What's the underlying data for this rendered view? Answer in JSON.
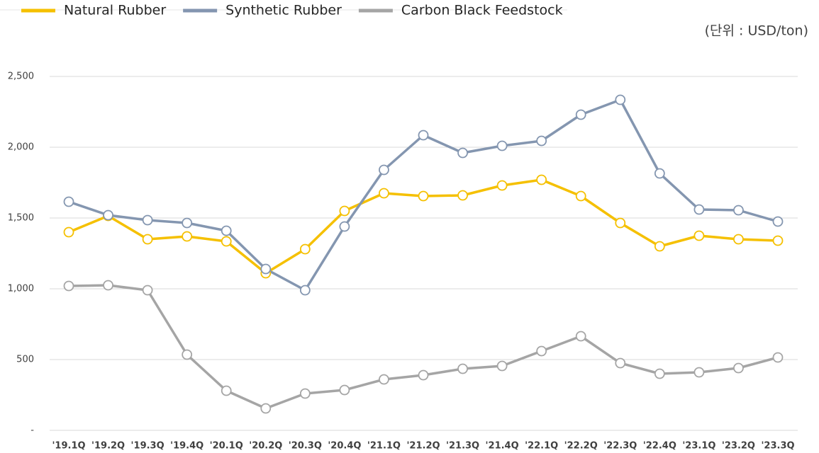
{
  "chart_data": {
    "type": "line",
    "unit_label": "(단위 : USD/ton)",
    "categories": [
      "'19.1Q",
      "'19.2Q",
      "'19.3Q",
      "'19.4Q",
      "'20.1Q",
      "'20.2Q",
      "'20.3Q",
      "'20.4Q",
      "'21.1Q",
      "'21.2Q",
      "'21.3Q",
      "'21.4Q",
      "'22.1Q",
      "'22.2Q",
      "'22.3Q",
      "'22.4Q",
      "'23.1Q",
      "'23.2Q",
      "'23.3Q"
    ],
    "series": [
      {
        "name": "Natural Rubber",
        "color": "#f5c000",
        "values": [
          1400,
          1515,
          1350,
          1370,
          1335,
          1110,
          1280,
          1550,
          1675,
          1655,
          1660,
          1730,
          1770,
          1655,
          1465,
          1300,
          1375,
          1350,
          1340
        ]
      },
      {
        "name": "Synthetic Rubber",
        "color": "#8496b0",
        "values": [
          1615,
          1520,
          1485,
          1465,
          1410,
          1140,
          990,
          1440,
          1840,
          2085,
          1960,
          2010,
          2045,
          2230,
          2335,
          1815,
          1560,
          1555,
          1475
        ]
      },
      {
        "name": "Carbon Black Feedstock",
        "color": "#a5a5a5",
        "values": [
          1020,
          1025,
          990,
          535,
          280,
          155,
          260,
          285,
          360,
          390,
          435,
          455,
          560,
          665,
          475,
          400,
          410,
          440,
          515
        ]
      }
    ],
    "ylim": [
      0,
      2500
    ],
    "yticks": [
      {
        "value": 0,
        "label": "-"
      },
      500,
      {
        "value": 1000,
        "label": "1,000"
      },
      {
        "value": 1500,
        "label": "1,500"
      },
      {
        "value": 2000,
        "label": "2,000"
      },
      {
        "value": 2500,
        "label": "2,500"
      }
    ],
    "grid": true,
    "legend": "top-left"
  }
}
